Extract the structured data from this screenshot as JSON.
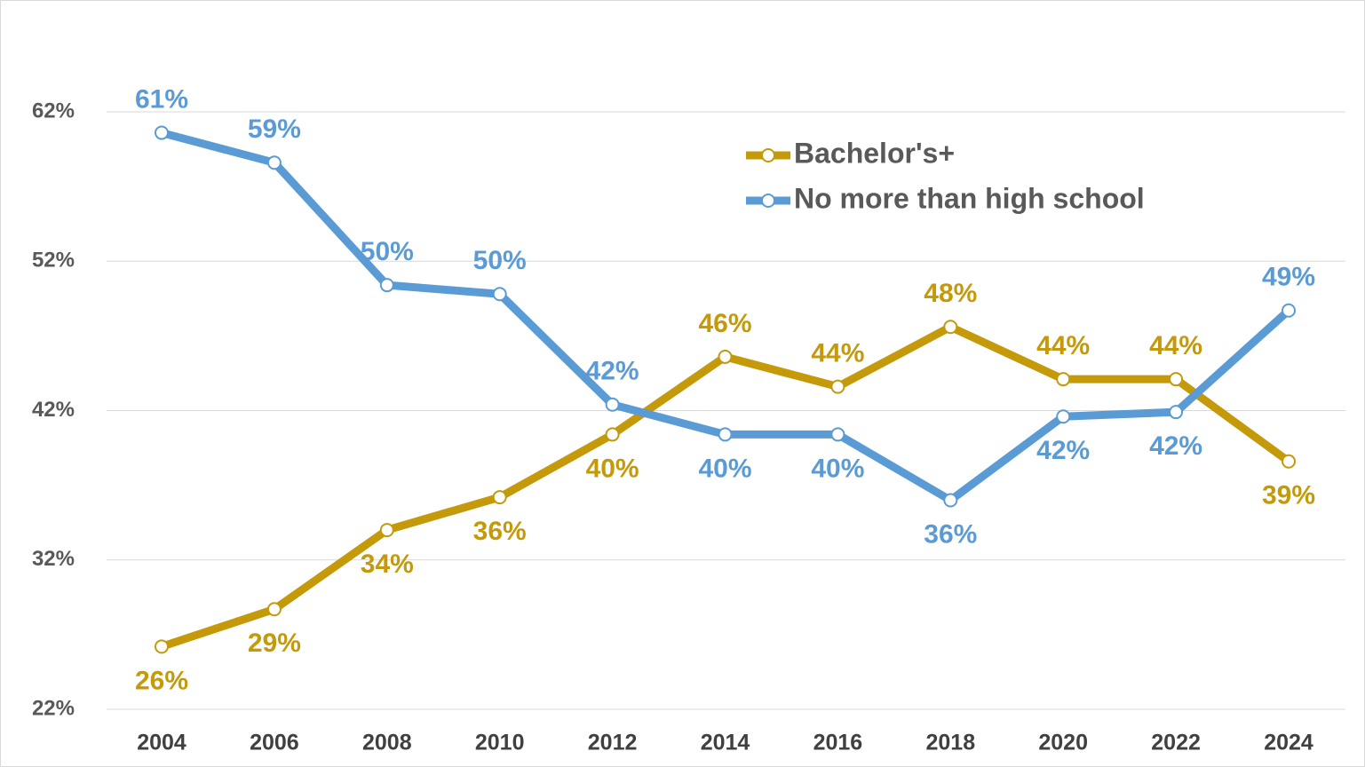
{
  "chart_data": {
    "type": "line",
    "categories": [
      "2004",
      "2006",
      "2008",
      "2010",
      "2012",
      "2014",
      "2016",
      "2018",
      "2020",
      "2022",
      "2024"
    ],
    "series": [
      {
        "name": "Bachelor's+",
        "color": "#c49a0a",
        "values": [
          26.2,
          28.7,
          34.0,
          36.2,
          40.4,
          45.6,
          43.6,
          47.6,
          44.1,
          44.1,
          38.6
        ],
        "value_labels": [
          "26%",
          "29%",
          "34%",
          "36%",
          "40%",
          "46%",
          "44%",
          "48%",
          "44%",
          "44%",
          "39%"
        ]
      },
      {
        "name": "No more than high school",
        "color": "#5b9bd5",
        "values": [
          60.6,
          58.6,
          50.4,
          49.8,
          42.4,
          40.4,
          40.4,
          36.0,
          41.6,
          41.9,
          48.7
        ],
        "value_labels": [
          "61%",
          "59%",
          "50%",
          "50%",
          "42%",
          "40%",
          "40%",
          "36%",
          "42%",
          "42%",
          "49%"
        ]
      }
    ],
    "ylim": [
      22,
      62
    ],
    "yticks": [
      {
        "value": 22,
        "label": "22%"
      },
      {
        "value": 32,
        "label": "32%"
      },
      {
        "value": 42,
        "label": "42%"
      },
      {
        "value": 52,
        "label": "52%"
      },
      {
        "value": 62,
        "label": "62%"
      }
    ],
    "grid": true,
    "legend": "upper right"
  }
}
